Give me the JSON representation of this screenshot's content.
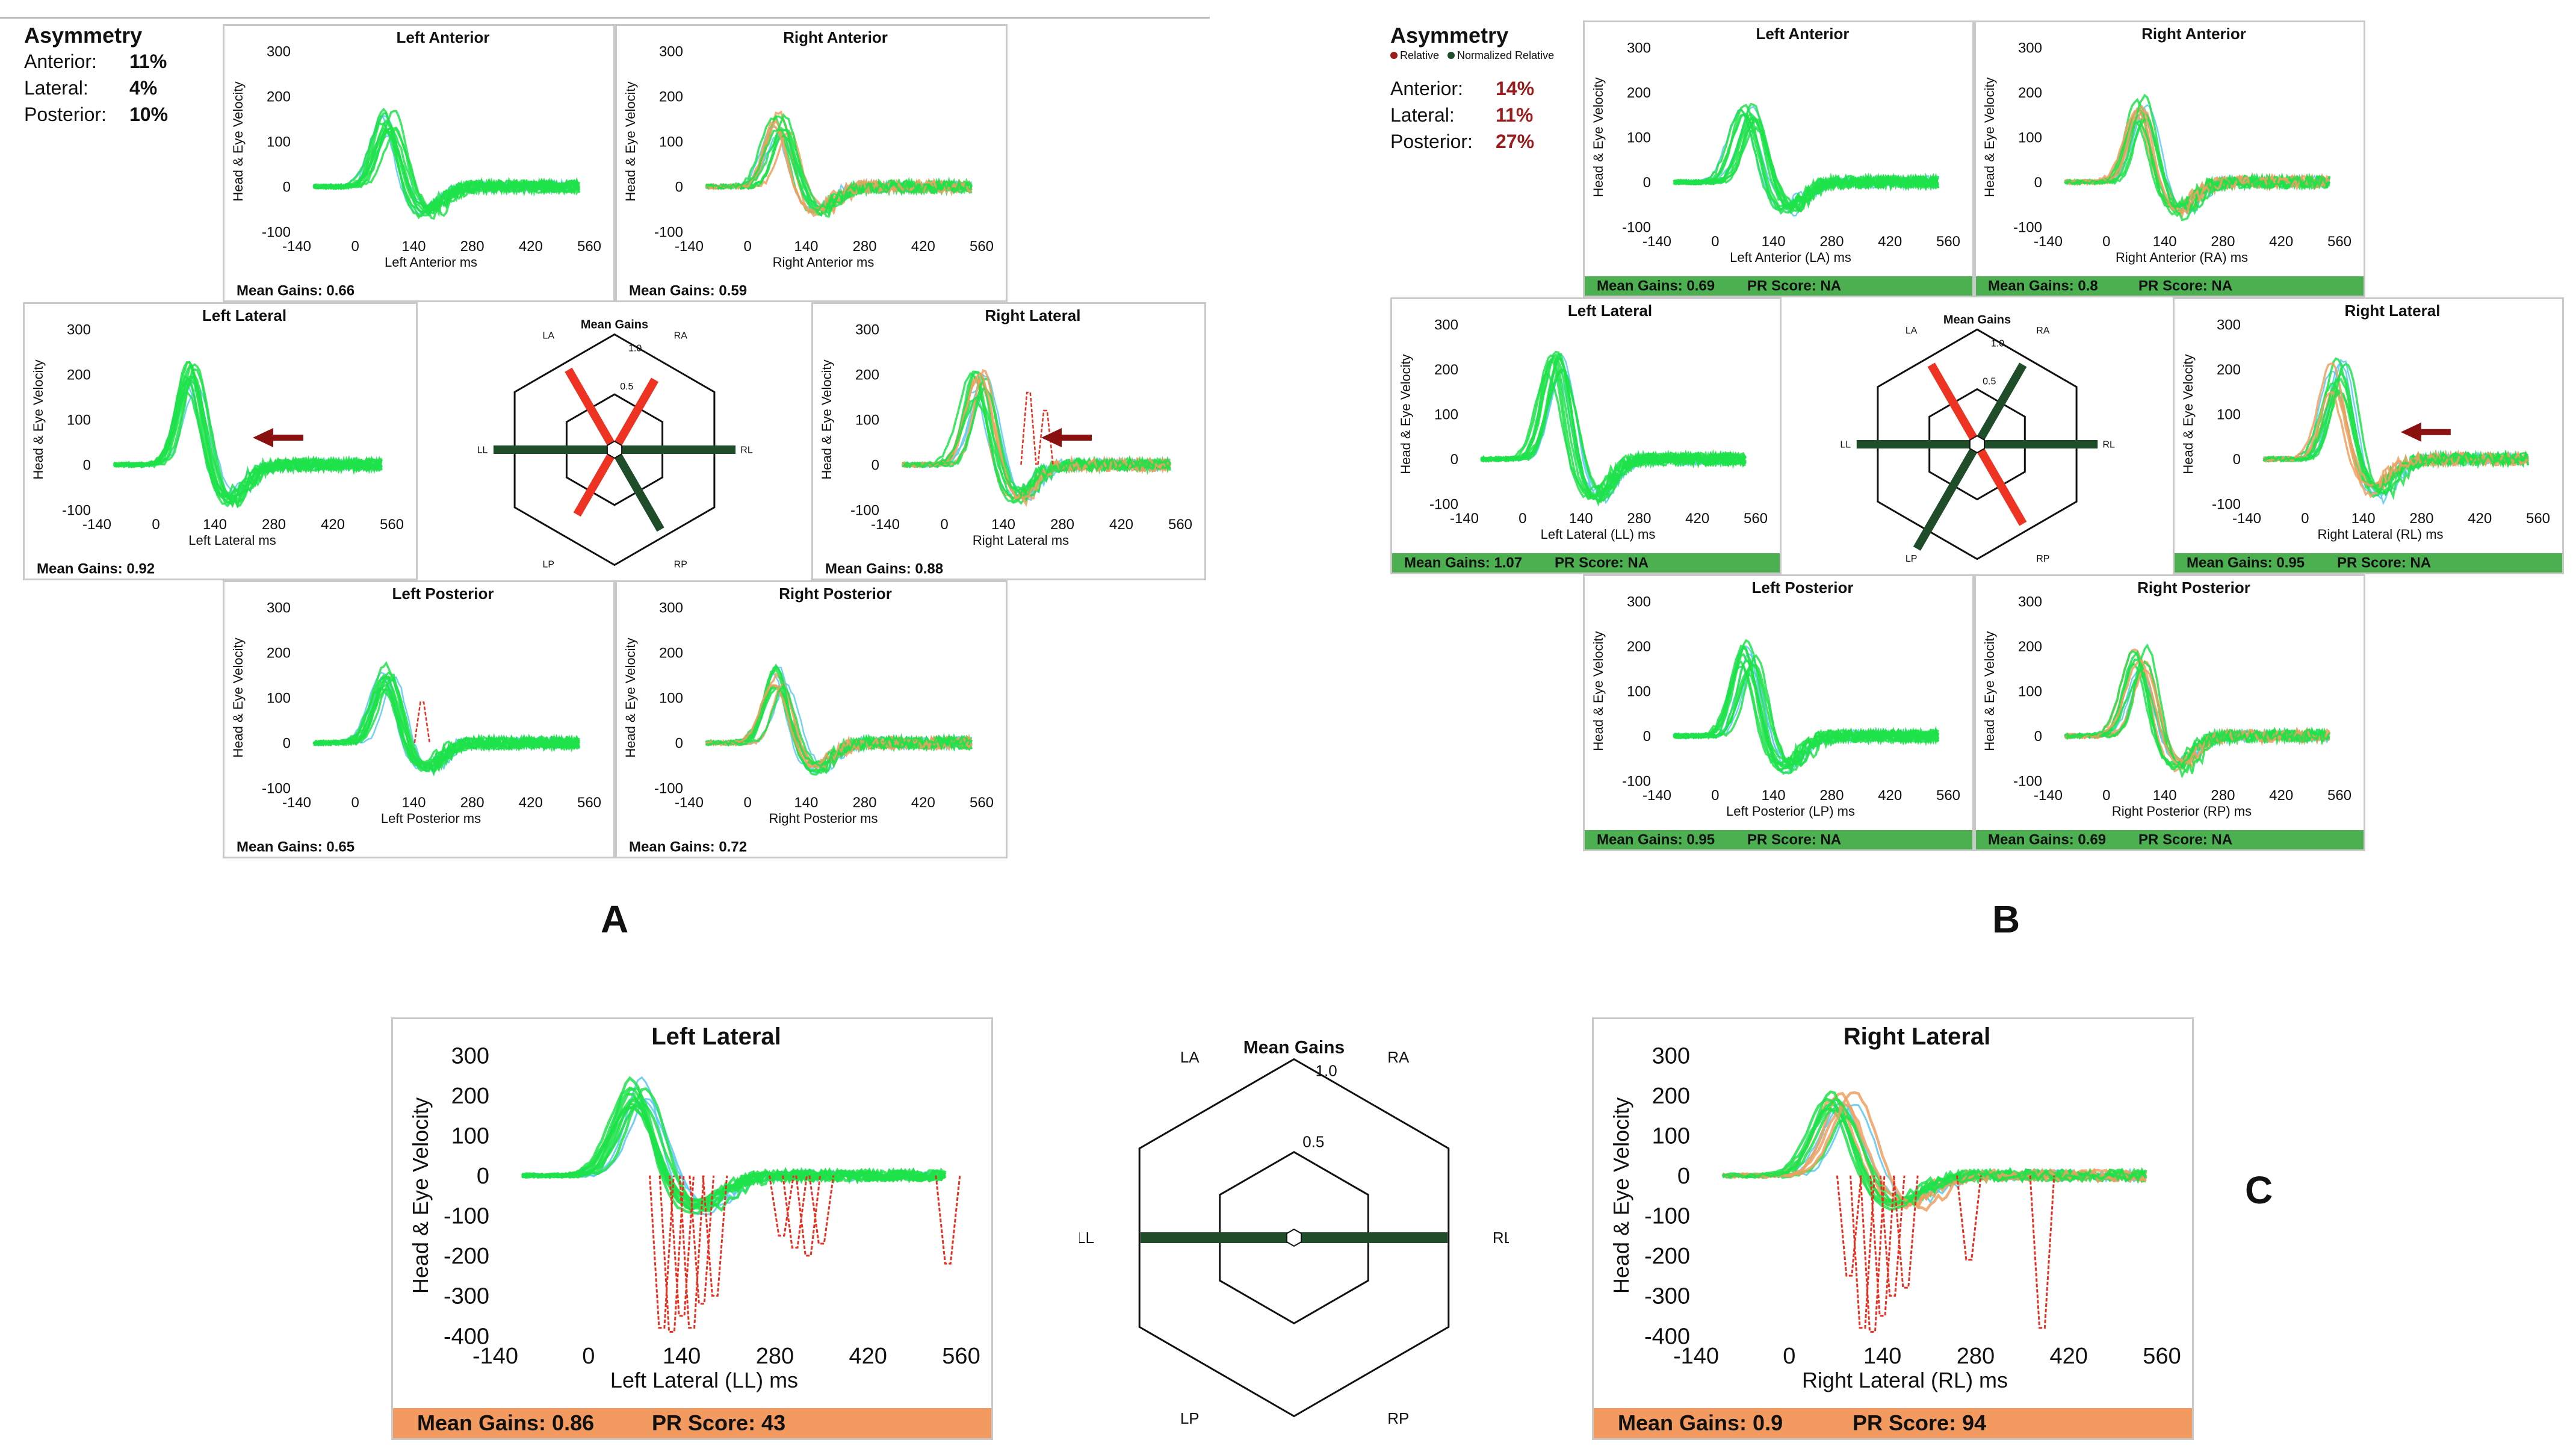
{
  "figure": {
    "label_a": "A",
    "label_b": "B",
    "label_c": "C"
  },
  "colors": {
    "head": "#5bc8f0",
    "left_eye": "#1ee24a",
    "right_eye": "#f0a060",
    "saccade": "#e83020",
    "arrow": "#8b1010",
    "gain_line": "#1f4d2a",
    "gain_red": "#ee3322",
    "footer_green": "#4caf50",
    "footer_orange": "#f39a60",
    "asym_red": "#9b1c1c"
  },
  "asymmetry_a": {
    "title": "Asymmetry",
    "rows": [
      {
        "label": "Anterior:",
        "value": "11%"
      },
      {
        "label": "Lateral:",
        "value": "4%"
      },
      {
        "label": "Posterior:",
        "value": "10%"
      }
    ]
  },
  "asymmetry_b": {
    "title": "Asymmetry",
    "legend_relative": "Relative",
    "legend_normalized": "Normalized Relative",
    "rows": [
      {
        "label": "Anterior:",
        "value": "14%"
      },
      {
        "label": "Lateral:",
        "value": "11%"
      },
      {
        "label": "Posterior:",
        "value": "27%"
      }
    ]
  },
  "hexagons": [
    {
      "title": "Mean Gains",
      "canals": [
        "LA",
        "RA",
        "LL",
        "RL",
        "LP",
        "RP"
      ],
      "outer_label": "1.0",
      "inner_label": "0.5"
    },
    {
      "title": "Mean Gains",
      "canals": [
        "LA",
        "RA",
        "LL",
        "RL",
        "LP",
        "RP"
      ],
      "outer_label": "1.0",
      "inner_label": "0.5"
    },
    {
      "title": "Mean Gains",
      "canals": [
        "LA",
        "RA",
        "LL",
        "RL",
        "LP",
        "RP"
      ],
      "outer_label": "1.0",
      "inner_label": "0.5"
    }
  ],
  "chart_data": [
    {
      "id": "A-LA",
      "type": "line",
      "title": "Left Anterior",
      "xlabel": "Left Anterior ms",
      "ylabel": "Head & Eye Velocity",
      "xticks": [
        -140,
        0,
        140,
        280,
        420,
        560
      ],
      "yticks": [
        -100,
        0,
        100,
        200,
        300
      ],
      "ylim": [
        -100,
        300
      ],
      "footer": "Mean Gains: 0.66",
      "pr_score": "",
      "footer_style": "plain",
      "peak": 150,
      "eye": "left",
      "saccade_x": [],
      "arrow": false
    },
    {
      "id": "A-RA",
      "type": "line",
      "title": "Right Anterior",
      "xlabel": "Right Anterior ms",
      "ylabel": "Head & Eye Velocity",
      "xticks": [
        -140,
        0,
        140,
        280,
        420,
        560
      ],
      "yticks": [
        -100,
        0,
        100,
        200,
        300
      ],
      "ylim": [
        -100,
        300
      ],
      "footer": "Mean Gains: 0.59",
      "pr_score": "",
      "footer_style": "plain",
      "peak": 150,
      "eye": "right",
      "saccade_x": [],
      "arrow": false
    },
    {
      "id": "A-LL",
      "type": "line",
      "title": "Left Lateral",
      "xlabel": "Left Lateral ms",
      "ylabel": "Head & Eye Velocity",
      "xticks": [
        -140,
        0,
        140,
        280,
        420,
        560
      ],
      "yticks": [
        -100,
        0,
        100,
        200,
        300
      ],
      "ylim": [
        -100,
        300
      ],
      "footer": "Mean Gains: 0.92",
      "pr_score": "",
      "footer_style": "plain",
      "peak": 220,
      "eye": "left",
      "saccade_x": [],
      "arrow": true
    },
    {
      "id": "A-RL",
      "type": "line",
      "title": "Right Lateral",
      "xlabel": "Right Lateral ms",
      "ylabel": "Head & Eye Velocity",
      "xticks": [
        -140,
        0,
        140,
        280,
        420,
        560
      ],
      "yticks": [
        -100,
        0,
        100,
        200,
        300
      ],
      "ylim": [
        -100,
        300
      ],
      "footer": "Mean Gains: 0.88",
      "pr_score": "",
      "footer_style": "plain",
      "peak": 190,
      "eye": "right",
      "saccade_x": [
        200,
        240
      ],
      "saccade_y": [
        160,
        120
      ],
      "arrow": true
    },
    {
      "id": "A-LP",
      "type": "line",
      "title": "Left Posterior",
      "xlabel": "Left Posterior ms",
      "ylabel": "Head & Eye Velocity",
      "xticks": [
        -140,
        0,
        140,
        280,
        420,
        560
      ],
      "yticks": [
        -100,
        0,
        100,
        200,
        300
      ],
      "ylim": [
        -100,
        300
      ],
      "footer": "Mean Gains: 0.65",
      "pr_score": "",
      "footer_style": "plain",
      "peak": 160,
      "eye": "left",
      "saccade_x": [
        160
      ],
      "saccade_y": [
        90
      ],
      "arrow": false
    },
    {
      "id": "A-RP",
      "type": "line",
      "title": "Right Posterior",
      "xlabel": "Right Posterior ms",
      "ylabel": "Head & Eye Velocity",
      "xticks": [
        -140,
        0,
        140,
        280,
        420,
        560
      ],
      "yticks": [
        -100,
        0,
        100,
        200,
        300
      ],
      "ylim": [
        -100,
        300
      ],
      "footer": "Mean Gains: 0.72",
      "pr_score": "",
      "footer_style": "plain",
      "peak": 160,
      "eye": "right",
      "saccade_x": [],
      "arrow": false
    },
    {
      "id": "B-LA",
      "type": "line",
      "title": "Left Anterior",
      "xlabel": "Left Anterior (LA) ms",
      "ylabel": "Head & Eye Velocity",
      "xticks": [
        -140,
        0,
        140,
        280,
        420,
        560
      ],
      "yticks": [
        -100,
        0,
        100,
        200,
        300
      ],
      "ylim": [
        -100,
        300
      ],
      "footer": "Mean Gains: 0.69",
      "pr_score": "PR Score: NA",
      "footer_style": "green",
      "peak": 160,
      "eye": "left",
      "saccade_x": [],
      "arrow": false
    },
    {
      "id": "B-RA",
      "type": "line",
      "title": "Right Anterior",
      "xlabel": "Right Anterior (RA) ms",
      "ylabel": "Head & Eye Velocity",
      "xticks": [
        -140,
        0,
        140,
        280,
        420,
        560
      ],
      "yticks": [
        -100,
        0,
        100,
        200,
        300
      ],
      "ylim": [
        -100,
        300
      ],
      "footer": "Mean Gains: 0.8",
      "pr_score": "PR Score: NA",
      "footer_style": "green",
      "peak": 170,
      "eye": "right",
      "saccade_x": [],
      "arrow": false
    },
    {
      "id": "B-LL",
      "type": "line",
      "title": "Left Lateral",
      "xlabel": "Left Lateral (LL) ms",
      "ylabel": "Head & Eye Velocity",
      "xticks": [
        -140,
        0,
        140,
        280,
        420,
        560
      ],
      "yticks": [
        -100,
        0,
        100,
        200,
        300
      ],
      "ylim": [
        -100,
        300
      ],
      "footer": "Mean Gains: 1.07",
      "pr_score": "PR Score: NA",
      "footer_style": "green",
      "peak": 220,
      "eye": "left",
      "saccade_x": [],
      "arrow": false
    },
    {
      "id": "B-RL",
      "type": "line",
      "title": "Right Lateral",
      "xlabel": "Right Lateral (RL) ms",
      "ylabel": "Head & Eye Velocity",
      "xticks": [
        -140,
        0,
        140,
        280,
        420,
        560
      ],
      "yticks": [
        -100,
        0,
        100,
        200,
        300
      ],
      "ylim": [
        -100,
        300
      ],
      "footer": "Mean Gains: 0.95",
      "pr_score": "PR Score: NA",
      "footer_style": "green",
      "peak": 200,
      "eye": "right",
      "saccade_x": [],
      "arrow": true
    },
    {
      "id": "B-LP",
      "type": "line",
      "title": "Left Posterior",
      "xlabel": "Left Posterior (LP) ms",
      "ylabel": "Head & Eye Velocity",
      "xticks": [
        -140,
        0,
        140,
        280,
        420,
        560
      ],
      "yticks": [
        -100,
        0,
        100,
        200,
        300
      ],
      "ylim": [
        -100,
        300
      ],
      "footer": "Mean Gains: 0.95",
      "pr_score": "PR Score: NA",
      "footer_style": "green",
      "peak": 190,
      "eye": "left",
      "saccade_x": [],
      "arrow": false
    },
    {
      "id": "B-RP",
      "type": "line",
      "title": "Right Posterior",
      "xlabel": "Right Posterior (RP) ms",
      "ylabel": "Head & Eye Velocity",
      "xticks": [
        -140,
        0,
        140,
        280,
        420,
        560
      ],
      "yticks": [
        -100,
        0,
        100,
        200,
        300
      ],
      "ylim": [
        -100,
        300
      ],
      "footer": "Mean Gains: 0.69",
      "pr_score": "PR Score: NA",
      "footer_style": "green",
      "peak": 180,
      "eye": "right",
      "saccade_x": [],
      "arrow": false
    },
    {
      "id": "C-LL",
      "type": "line",
      "title": "Left Lateral",
      "xlabel": "Left Lateral (LL) ms",
      "ylabel": "Head & Eye Velocity",
      "xticks": [
        -140,
        0,
        140,
        280,
        420,
        560
      ],
      "yticks": [
        -400,
        -300,
        -200,
        -100,
        0,
        100,
        200,
        300
      ],
      "ylim": [
        -400,
        300
      ],
      "footer": "Mean Gains: 0.86",
      "pr_score": "PR Score: 43",
      "footer_style": "orange",
      "peak": 220,
      "eye": "left",
      "saccade_x": [
        110,
        125,
        140,
        155,
        170,
        190,
        290,
        310,
        330,
        350,
        540
      ],
      "saccade_y": [
        -380,
        -390,
        -350,
        -380,
        -320,
        -300,
        -150,
        -180,
        -200,
        -170,
        -220
      ],
      "arrow": false
    },
    {
      "id": "C-RL",
      "type": "line",
      "title": "Right Lateral",
      "xlabel": "Right Lateral (RL) ms",
      "ylabel": "Head & Eye Velocity",
      "xticks": [
        -140,
        0,
        140,
        280,
        420,
        560
      ],
      "yticks": [
        -400,
        -300,
        -200,
        -100,
        0,
        100,
        200,
        300
      ],
      "ylim": [
        -400,
        300
      ],
      "footer": "Mean Gains: 0.9",
      "pr_score": "PR Score: 94",
      "footer_style": "orange",
      "peak": 190,
      "eye": "right",
      "saccade_x": [
        90,
        110,
        125,
        140,
        155,
        175,
        270,
        380
      ],
      "saccade_y": [
        -250,
        -380,
        -390,
        -350,
        -300,
        -280,
        -210,
        -380
      ],
      "arrow": false
    }
  ]
}
